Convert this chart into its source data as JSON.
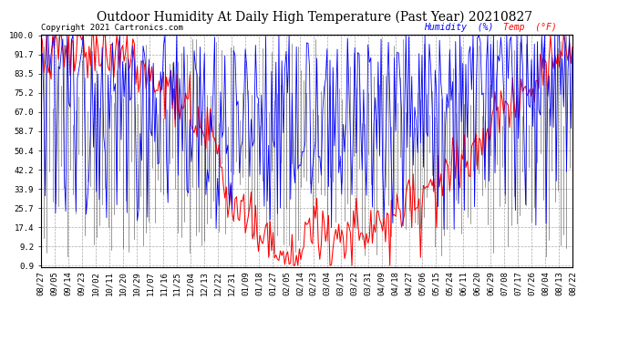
{
  "title": "Outdoor Humidity At Daily High Temperature (Past Year) 20210827",
  "copyright": "Copyright 2021 Cartronics.com",
  "legend_humidity": "Humidity  (%)",
  "legend_temp": "Temp  (°F)",
  "humidity_color": "blue",
  "temp_color": "red",
  "black_color": "black",
  "yticks": [
    0.9,
    9.2,
    17.4,
    25.7,
    33.9,
    42.2,
    50.4,
    58.7,
    67.0,
    75.2,
    83.5,
    91.7,
    100.0
  ],
  "xtick_labels": [
    "08/27",
    "09/05",
    "09/14",
    "09/23",
    "10/02",
    "10/11",
    "10/20",
    "10/29",
    "11/07",
    "11/16",
    "11/25",
    "12/04",
    "12/13",
    "12/22",
    "12/31",
    "01/09",
    "01/18",
    "01/27",
    "02/05",
    "02/14",
    "02/23",
    "03/04",
    "03/13",
    "03/22",
    "03/31",
    "04/09",
    "04/18",
    "04/27",
    "05/06",
    "05/15",
    "05/24",
    "06/11",
    "06/20",
    "06/29",
    "07/08",
    "07/17",
    "07/26",
    "08/04",
    "08/13",
    "08/22"
  ],
  "background_color": "#ffffff",
  "grid_color": "#aaaaaa",
  "ylim_min": 0.9,
  "ylim_max": 100.0,
  "title_fontsize": 10,
  "axis_fontsize": 6.5,
  "copyright_fontsize": 6.5
}
